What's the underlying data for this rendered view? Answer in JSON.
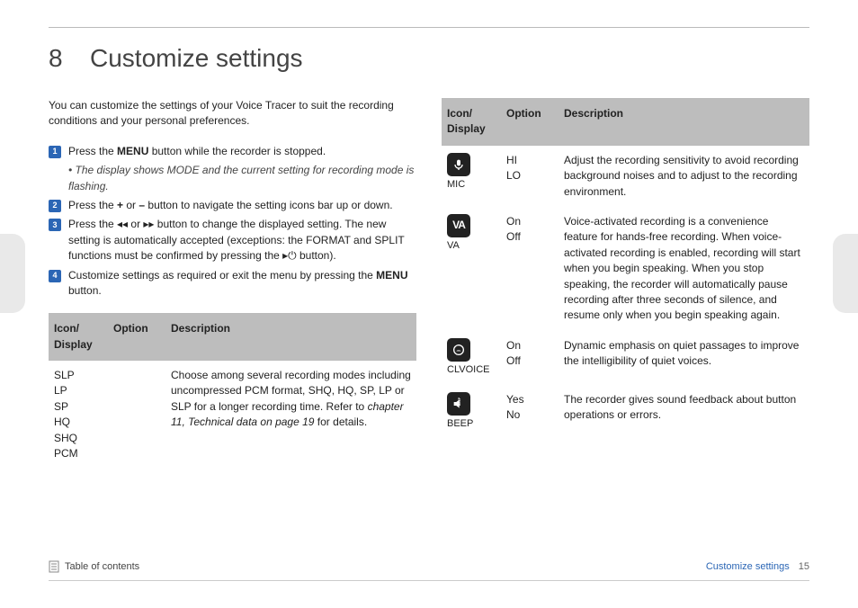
{
  "chapter": {
    "number": "8",
    "title": "Customize settings"
  },
  "intro": "You can customize the settings of your Voice Tracer to suit the recording conditions and your personal preferences.",
  "steps": [
    {
      "num": "1",
      "pre": "Press the ",
      "bold": "MENU",
      "post": " button while the recorder is stopped.",
      "sub": "The display shows MODE and the current setting for recording mode is flashing."
    },
    {
      "num": "2",
      "pre": "Press the ",
      "bold": "+",
      "mid": " or ",
      "bold2": "–",
      "post": " button to navigate the setting icons bar up or down."
    },
    {
      "num": "3",
      "text": "Press the ◂◂ or ▸▸ button to change the displayed setting. The new setting is automatically accepted (exceptions: the FORMAT and SPLIT functions must be confirmed by pressing the ▸⏻ button)."
    },
    {
      "num": "4",
      "pre": "Customize settings as required or exit the menu by pressing the ",
      "bold": "MENU",
      "post": " button."
    }
  ],
  "headers": {
    "icon": "Icon/\nDisplay",
    "option": "Option",
    "desc": "Description"
  },
  "left_rows": [
    {
      "icon_lines": [
        "SLP",
        "LP",
        "SP",
        "HQ",
        "SHQ",
        "PCM"
      ],
      "option": "",
      "desc_pre": "Choose among several recording modes including uncompressed PCM format, SHQ, HQ, SP, LP or SLP for a longer recording time. Refer to ",
      "desc_ital": "chapter 11, Technical data on page 19",
      "desc_post": " for details."
    }
  ],
  "right_rows": [
    {
      "icon": "mic",
      "icon_label": "MIC",
      "options": [
        "HI",
        "LO"
      ],
      "desc": "Adjust the recording sensitivity to avoid recording background noises and to adjust to the recording environment."
    },
    {
      "icon": "va",
      "icon_label": "VA",
      "options": [
        "On",
        "Off"
      ],
      "desc": "Voice-activated recording is a convenience feature for hands-free recording. When voice-activated recording is enabled, recording will start when you begin speaking. When you stop speaking, the recorder will automatically pause recording after three seconds of silence, and resume only when you begin speaking again."
    },
    {
      "icon": "clvoice",
      "icon_label": "CLVOICE",
      "options": [
        "On",
        "Off"
      ],
      "desc": "Dynamic emphasis on quiet passages to improve the intelligibility of quiet voices."
    },
    {
      "icon": "beep",
      "icon_label": "BEEP",
      "options": [
        "Yes",
        "No"
      ],
      "desc": "The recorder gives sound feedback about button operations or errors."
    }
  ],
  "footer": {
    "toc": "Table of contents",
    "section": "Customize settings",
    "page": "15"
  },
  "colors": {
    "badge_bg": "#2b66b5",
    "header_bg": "#bdbdbd",
    "icon_bg": "#222222",
    "section_link": "#2b66b5"
  }
}
